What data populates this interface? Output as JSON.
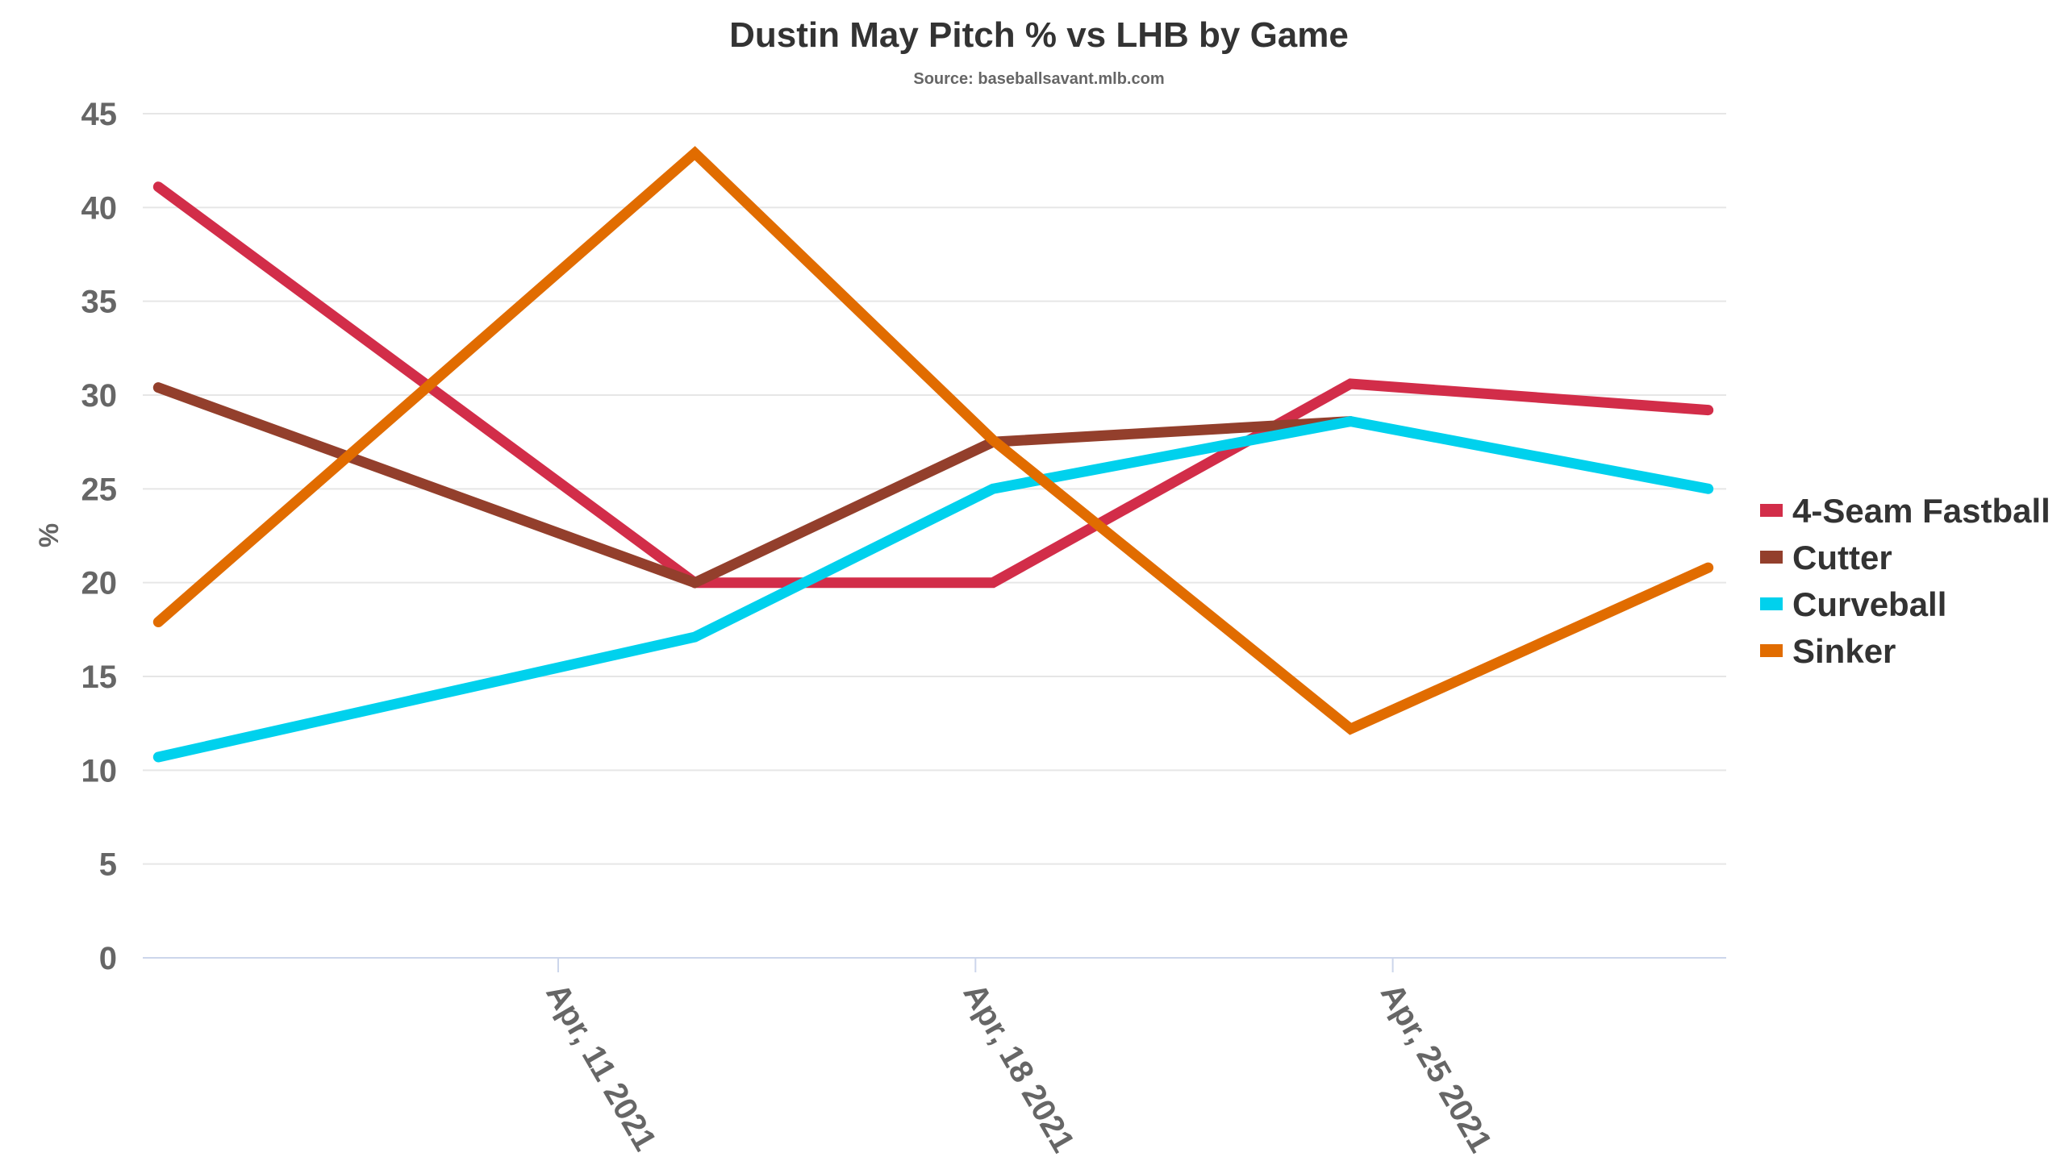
{
  "chart_data": {
    "type": "line",
    "title": "Dustin May Pitch % vs LHB by Game",
    "subtitle": "Source: baseballsavant.mlb.com",
    "xlabel": "",
    "ylabel": "%",
    "ylim": [
      0,
      45
    ],
    "yticks": [
      0,
      5,
      10,
      15,
      20,
      25,
      30,
      35,
      40,
      45
    ],
    "xticks": [
      {
        "date": "2021-04-11",
        "label": "Apr, 11 2021"
      },
      {
        "date": "2021-04-18",
        "label": "Apr, 18 2021"
      },
      {
        "date": "2021-04-25",
        "label": "Apr, 25 2021"
      }
    ],
    "x": [
      "2021-04-04T07:00",
      "2021-04-13T07:00",
      "2021-04-18T07:00",
      "2021-04-24T07:00",
      "2021-04-30T07:00"
    ],
    "grid": true,
    "legend_position": "right",
    "series": [
      {
        "name": "4-Seam Fastball",
        "color": "#d22d49",
        "values": [
          41.1,
          20.0,
          20.0,
          30.6,
          29.2
        ]
      },
      {
        "name": "Cutter",
        "color": "#933f2c",
        "values": [
          30.4,
          20.0,
          27.5,
          28.6,
          null
        ]
      },
      {
        "name": "Curveball",
        "color": "#00d1ed",
        "values": [
          10.7,
          17.1,
          25.0,
          28.6,
          25.0
        ]
      },
      {
        "name": "Sinker",
        "color": "#e16c00",
        "values": [
          17.9,
          42.9,
          27.6,
          12.2,
          20.8
        ]
      }
    ]
  }
}
